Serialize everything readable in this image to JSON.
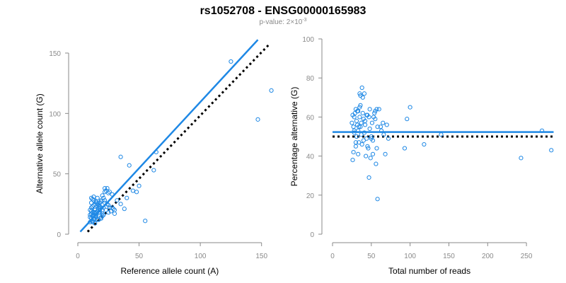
{
  "header": {
    "title": "rs1052708 - ENSG00000165983",
    "pvalue_prefix": "p-value: 2×10",
    "pvalue_exponent": "-3"
  },
  "colors": {
    "accent": "#1e88e5",
    "reference_line": "#000000",
    "axis": "#8a8a8a",
    "background": "#ffffff"
  },
  "chart_data": [
    {
      "type": "scatter",
      "title": "",
      "xlabel": "Reference allele count (A)",
      "ylabel": "Alternative allele count (G)",
      "xlim": [
        0,
        160
      ],
      "ylim": [
        0,
        150
      ],
      "xticks": [
        0,
        50,
        100,
        150
      ],
      "yticks": [
        0,
        50,
        100,
        150
      ],
      "grid": false,
      "legend": "none",
      "fit_line": {
        "style": "solid",
        "color": "#1e88e5",
        "x": [
          2,
          147
        ],
        "y": [
          2,
          161
        ]
      },
      "reference_line": {
        "style": "dotted",
        "color": "#000000",
        "x": [
          8,
          157
        ],
        "y": [
          2,
          158
        ]
      },
      "points": {
        "x": [
          10,
          11,
          12,
          13,
          14,
          15,
          16,
          17,
          10,
          11,
          12,
          13,
          14,
          15,
          16,
          18,
          19,
          20,
          10,
          11,
          12,
          13,
          14,
          15,
          16,
          17,
          18,
          20,
          21,
          22,
          24,
          25,
          26,
          27,
          28,
          29,
          30,
          11,
          12,
          13,
          14,
          15,
          16,
          17,
          18,
          19,
          20,
          22,
          23,
          25,
          12,
          13,
          14,
          16,
          18,
          20,
          21,
          22,
          24,
          26,
          12,
          15,
          17,
          19,
          21,
          23,
          25,
          28,
          30,
          32,
          35,
          38,
          40,
          42,
          45,
          48,
          50,
          55,
          62,
          64,
          35,
          125,
          147,
          158,
          10,
          11,
          12,
          13,
          14,
          11,
          13,
          15,
          12,
          14,
          17,
          19,
          18,
          22
        ],
        "y": [
          20,
          22,
          18,
          24,
          21,
          16,
          19,
          23,
          14,
          17,
          15,
          12,
          20,
          18,
          25,
          22,
          27,
          15,
          10,
          13,
          11,
          16,
          9,
          14,
          12,
          18,
          26,
          20,
          30,
          28,
          25,
          24,
          22,
          19,
          33,
          21,
          17,
          26,
          29,
          31,
          25,
          27,
          30,
          24,
          23,
          28,
          32,
          35,
          36,
          34,
          11,
          13,
          15,
          12,
          18,
          17,
          22,
          26,
          38,
          35,
          10,
          15,
          12,
          14,
          16,
          20,
          18,
          22,
          20,
          28,
          25,
          21,
          30,
          57,
          36,
          35,
          40,
          11,
          53,
          68,
          64,
          143,
          95,
          119,
          16,
          19,
          23,
          18,
          21,
          30,
          28,
          26,
          15,
          17,
          22,
          13,
          20,
          38
        ]
      }
    },
    {
      "type": "scatter",
      "title": "",
      "xlabel": "Total number of reads",
      "ylabel": "Percentage alternative (G)",
      "xlim": [
        0,
        280
      ],
      "ylim": [
        0,
        100
      ],
      "xticks": [
        0,
        50,
        100,
        150,
        200,
        250
      ],
      "yticks": [
        0,
        20,
        40,
        60,
        80,
        100
      ],
      "grid": false,
      "legend": "none",
      "fit_line": {
        "style": "solid",
        "color": "#1e88e5",
        "x": [
          0,
          285
        ],
        "y": [
          52.3,
          52.3
        ]
      },
      "reference_line": {
        "style": "dotted",
        "color": "#000000",
        "x": [
          0,
          285
        ],
        "y": [
          50,
          50
        ]
      },
      "points": {
        "x": [
          25,
          26,
          27,
          27,
          28,
          28,
          29,
          30,
          30,
          31,
          31,
          32,
          33,
          33,
          34,
          35,
          35,
          35,
          36,
          36,
          37,
          37,
          38,
          38,
          39,
          40,
          40,
          41,
          41,
          42,
          42,
          43,
          44,
          45,
          45,
          46,
          47,
          47,
          48,
          49,
          50,
          50,
          51,
          52,
          53,
          54,
          55,
          55,
          56,
          57,
          58,
          58,
          60,
          62,
          63,
          65,
          66,
          68,
          70,
          72,
          93,
          96,
          100,
          118,
          140,
          243,
          270,
          282,
          26,
          28,
          32,
          36,
          44,
          48,
          52,
          57,
          30,
          33,
          39,
          34
        ],
        "y": [
          57,
          38,
          42,
          55,
          52,
          60,
          62,
          45,
          64,
          50,
          58,
          63,
          41,
          53,
          47,
          60,
          65,
          72,
          55,
          71,
          51,
          57,
          46,
          75,
          62,
          59,
          48,
          52,
          72,
          58,
          56,
          40,
          61,
          61,
          45,
          44,
          29,
          60,
          64,
          39,
          50,
          49,
          57,
          48,
          60,
          62,
          59,
          63,
          36,
          64,
          18,
          55,
          64,
          55,
          53,
          57,
          51,
          41,
          56,
          49,
          44,
          59,
          65,
          46,
          51,
          39,
          53,
          43,
          61,
          53,
          56,
          66,
          49,
          54,
          41,
          44,
          47,
          63,
          70,
          55
        ]
      }
    }
  ]
}
